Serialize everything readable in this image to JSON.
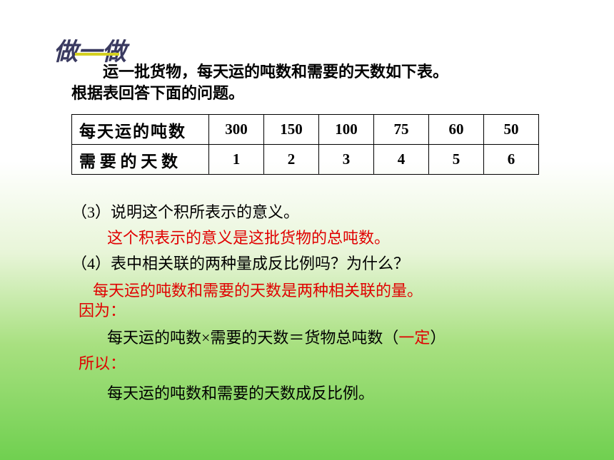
{
  "title": "做一做",
  "intro_line1": "　　运一批货物，每天运的吨数和需要的天数如下表。",
  "intro_line2": "根据表回答下面的问题。",
  "table": {
    "row1_label": "每天运的吨数",
    "row2_label": "需 要 的 天 数",
    "tons": [
      "300",
      "150",
      "100",
      "75",
      "60",
      "50"
    ],
    "days": [
      "1",
      "2",
      "3",
      "4",
      "5",
      "6"
    ]
  },
  "q3": "（3）说明这个积所表示的意义。",
  "a3": "这个积表示的意义是这批货物的总吨数。",
  "q4": "（4）表中相关联的两种量成反比例吗？为什么？",
  "a4_line1": "每天运的吨数和需要的天数是两种相关联的量。",
  "a4_because": "因为：",
  "equation_pre": "每天运的吨数×需要的天数＝货物总吨数（",
  "equation_red": "一定",
  "equation_post": "）",
  "a4_so": "所以：",
  "conclusion": "每天运的吨数和需要的天数成反比例。",
  "colors": {
    "red": "#e00000",
    "black": "#000000",
    "title": "#3a3a60",
    "underline": "#d4d020"
  }
}
